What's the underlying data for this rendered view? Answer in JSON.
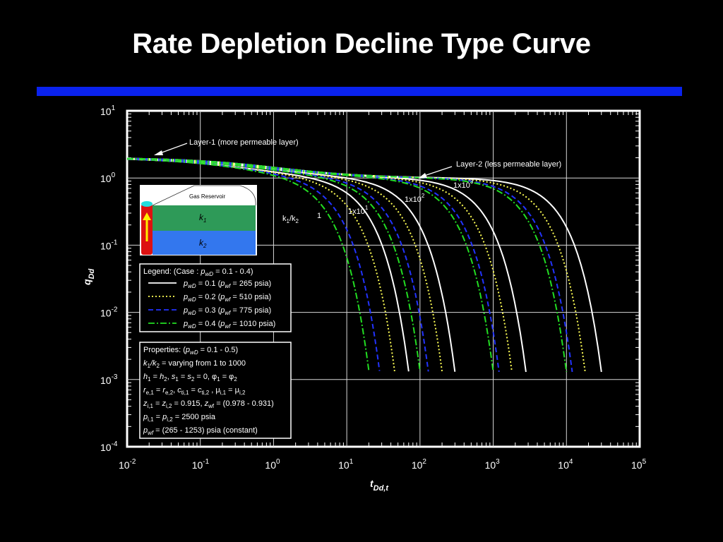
{
  "slide": {
    "title": "Rate Depletion Decline Type Curve",
    "accent_color": "#0a22ee"
  },
  "chart_data": {
    "type": "line",
    "x_scale": "log",
    "y_scale": "log",
    "xlim": [
      0.01,
      100000
    ],
    "ylim": [
      0.0001,
      10
    ],
    "grid": true,
    "x_ticks": [
      "10-2",
      "10-1",
      "100",
      "101",
      "102",
      "103",
      "104",
      "105"
    ],
    "y_ticks": [
      "10-4",
      "10-3",
      "10-2",
      "10-1",
      "100",
      "101"
    ],
    "xlabel": "t Dd,t",
    "ylabel": "q Dd",
    "legend": {
      "title": "Legend:  (Case :  pwD  =  0.1 - 0.4)",
      "entries": [
        {
          "label": "pwD = 0.1 (pwf = 265 psia)",
          "color": "#ffffff",
          "style": "solid"
        },
        {
          "label": "pwD = 0.2 (pwf = 510 psia)",
          "color": "#ffff55",
          "style": "dotted"
        },
        {
          "label": "pwD = 0.3 (pwf = 775 psia)",
          "color": "#2233ff",
          "style": "dashed"
        },
        {
          "label": "pwD = 0.4 (pwf = 1010 psia)",
          "color": "#22dd22",
          "style": "dashdot"
        }
      ]
    },
    "properties_box": [
      "Properties: (pwD = 0.1 - 0.5)",
      "k1/k2 = varying from 1 to 1000",
      "h1 = h2, s1 = s2 = 0, φ1 = φ2",
      "re,1 = re,2, cti,1 = cti,2 , μi,1 = μi,2",
      "zi,1 = zi,2 = 0.915, zwf = (0.978 - 0.931)",
      "pi,1 = pi,2 = 2500 psia",
      "pwf = (265 - 1253) psia (constant)"
    ],
    "annotations": {
      "layer1": "Layer-1 (more permeable layer)",
      "layer2": "Layer-2 (less permeable layer)",
      "ratio_label": "k1/k2",
      "ratios": [
        "1",
        "1x101",
        "1x102",
        "1x103"
      ]
    },
    "inset": {
      "gas_reservoir": "Gas Reservoir",
      "layer1": "k1",
      "layer2": "k2"
    },
    "series": [
      {
        "name": "k1/k2 = 1, pwD = 0.1",
        "x_end": 70
      },
      {
        "name": "k1/k2 = 1, pwD = 0.2",
        "x_end": 45
      },
      {
        "name": "k1/k2 = 1, pwD = 0.3",
        "x_end": 28
      },
      {
        "name": "k1/k2 = 1, pwD = 0.4",
        "x_end": 20
      },
      {
        "name": "k1/k2 = 1x10, pwD = 0.1",
        "x_end": 300
      },
      {
        "name": "k1/k2 = 1x10, pwD = 0.2",
        "x_end": 200
      },
      {
        "name": "k1/k2 = 1x10, pwD = 0.3",
        "x_end": 130
      },
      {
        "name": "k1/k2 = 1x10, pwD = 0.4",
        "x_end": 100
      },
      {
        "name": "k1/k2 = 1x100, pwD = 0.1",
        "x_end": 2800
      },
      {
        "name": "k1/k2 = 1x100, pwD = 0.2",
        "x_end": 1800
      },
      {
        "name": "k1/k2 = 1x100, pwD = 0.3",
        "x_end": 1200
      },
      {
        "name": "k1/k2 = 1x100, pwD = 0.4",
        "x_end": 1000
      },
      {
        "name": "k1/k2 = 1x1000, pwD = 0.1",
        "x_end": 30000
      },
      {
        "name": "k1/k2 = 1x1000, pwD = 0.2",
        "x_end": 18000
      },
      {
        "name": "k1/k2 = 1x1000, pwD = 0.3",
        "x_end": 12000
      },
      {
        "name": "k1/k2 = 1x1000, pwD = 0.4",
        "x_end": 10000
      }
    ]
  }
}
